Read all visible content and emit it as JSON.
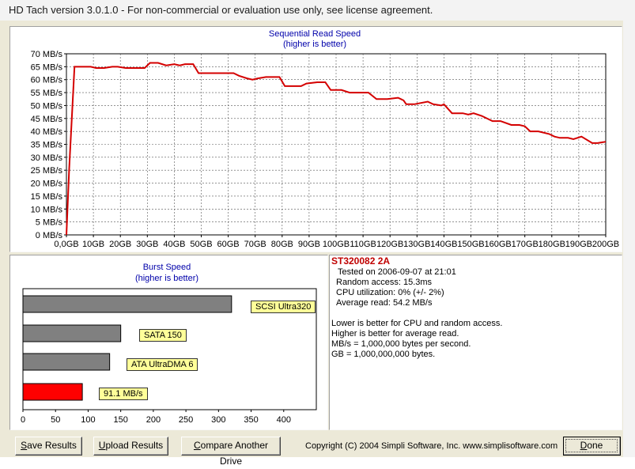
{
  "window": {
    "title": "HD Tach version 3.0.1.0  - For non-commercial or evaluation use only, see license agreement."
  },
  "colors": {
    "line": "#d40000",
    "burst_bar": "#808080",
    "current_bar": "#ff0000",
    "label_bg": "#ffff99",
    "drive_name": "#c00000",
    "title_blue": "#0000aa"
  },
  "chart_data": [
    {
      "type": "line",
      "title": "Sequential Read Speed",
      "subtitle": "(higher is better)",
      "xlabel": "",
      "ylabel": "",
      "ylim": [
        0,
        70
      ],
      "xlim": [
        0,
        200
      ],
      "grid": true,
      "y_ticks": [
        "0 MB/s",
        "5 MB/s",
        "10 MB/s",
        "15 MB/s",
        "20 MB/s",
        "25 MB/s",
        "30 MB/s",
        "35 MB/s",
        "40 MB/s",
        "45 MB/s",
        "50 MB/s",
        "55 MB/s",
        "60 MB/s",
        "65 MB/s",
        "70 MB/s"
      ],
      "x_ticks": [
        "0,0GB",
        "10GB",
        "20GB",
        "30GB",
        "40GB",
        "50GB",
        "60GB",
        "70GB",
        "80GB",
        "90GB",
        "100GB",
        "110GB",
        "120GB",
        "130GB",
        "140GB",
        "150GB",
        "160GB",
        "170GB",
        "180GB",
        "190GB",
        "200GB"
      ],
      "series": [
        {
          "x": [
            0,
            1,
            3,
            4,
            9,
            11,
            14,
            17,
            19,
            22,
            25,
            27,
            29,
            31,
            34,
            37,
            40,
            42,
            44,
            47,
            49,
            54,
            58,
            62,
            64,
            67,
            69,
            71,
            74,
            76,
            79,
            81,
            84,
            87,
            89,
            93,
            95,
            96,
            98,
            102,
            105,
            107,
            112,
            115,
            119,
            123,
            125,
            126,
            129,
            134,
            136,
            139,
            140,
            143,
            147,
            149,
            151,
            154,
            158,
            160,
            161,
            165,
            168,
            170,
            172,
            175,
            179,
            181,
            183,
            186,
            188,
            191,
            195,
            197,
            200
          ],
          "y": [
            0,
            25,
            65,
            65,
            65,
            64.5,
            64.5,
            65,
            65,
            64.5,
            64.5,
            64.5,
            64.5,
            66.5,
            66.5,
            65.5,
            66,
            65.5,
            66,
            66,
            62.5,
            62.5,
            62.5,
            62.5,
            61.5,
            60.5,
            60,
            60.5,
            61,
            61,
            61,
            57.5,
            57.5,
            57.5,
            58.5,
            59,
            59,
            59,
            56,
            56,
            55,
            55,
            55,
            52.5,
            52.5,
            53,
            52,
            50.5,
            50.5,
            51.5,
            50.5,
            50,
            50.5,
            47,
            47,
            46.5,
            47,
            46,
            44,
            44,
            44,
            42.5,
            42.5,
            42,
            40,
            40,
            39,
            38,
            37.5,
            37.5,
            37,
            38,
            35.5,
            35.5,
            36
          ]
        }
      ]
    },
    {
      "type": "bar",
      "title": "Burst Speed",
      "subtitle": "(higher is better)",
      "orientation": "horizontal",
      "xlim": [
        0,
        450
      ],
      "x_ticks": [
        "0",
        "50",
        "100",
        "150",
        "200",
        "250",
        "300",
        "350",
        "400"
      ],
      "categories": [
        "SCSI Ultra320",
        "SATA 150",
        "ATA UltraDMA 6",
        "91.1 MB/s"
      ],
      "values": [
        320,
        150,
        133,
        91.1
      ],
      "colors": [
        "#808080",
        "#808080",
        "#808080",
        "#ff0000"
      ]
    }
  ],
  "results": {
    "drive": "ST320082 2A",
    "tested_on": "Tested on 2006-09-07 at 21:01",
    "random_access": "Random access: 15.3ms",
    "cpu": "CPU utilization: 0% (+/- 2%)",
    "average_read": "Average read: 54.2 MB/s",
    "note1": "Lower is better for CPU and random access.",
    "note2": "Higher is better for average read.",
    "note3": "MB/s = 1,000,000 bytes per second.",
    "note4": "GB = 1,000,000,000 bytes."
  },
  "buttons": {
    "save_first": "S",
    "save_rest": "ave Results",
    "upload_first": "U",
    "upload_rest": "pload Results",
    "compare_first": "C",
    "compare_rest": "ompare Another Drive",
    "done_first": "D",
    "done_rest": "one"
  },
  "copyright": "Copyright (C) 2004 Simpli Software, Inc. www.simplisoftware.com"
}
